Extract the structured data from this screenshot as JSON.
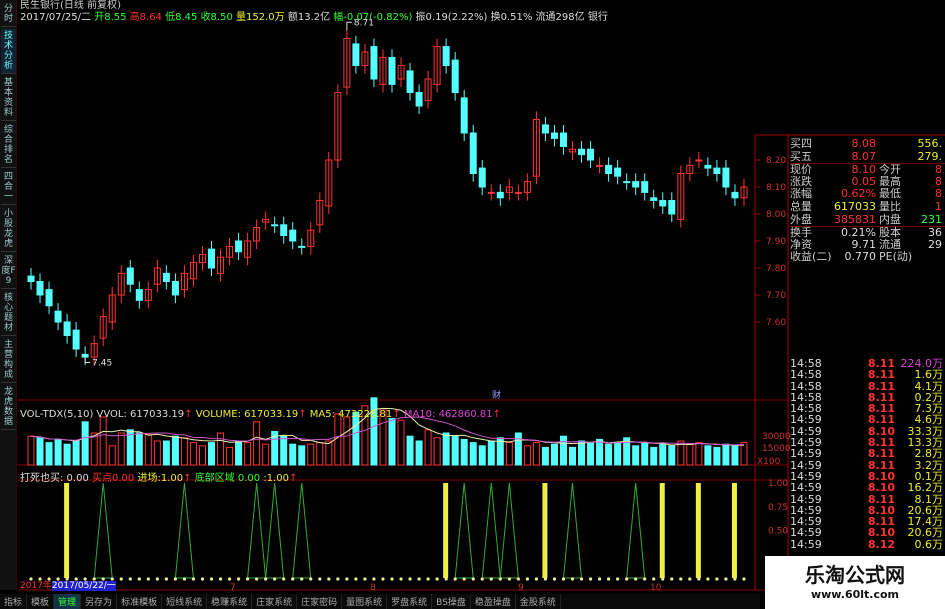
{
  "sidebar": {
    "tabs": [
      "分时",
      "技术分析",
      "基本资料",
      "综合排名",
      "四合一",
      "小股龙虎",
      "深度F9",
      "核心题材",
      "主营构成",
      "龙虎数据"
    ],
    "active": 1
  },
  "header": {
    "title": "民生银行(日线 前复权)",
    "date": "2017/07/25/二",
    "open": "开8.55",
    "high": "高8.64",
    "low": "低8.45",
    "close": "收8.50",
    "volume": "量152.0万",
    "amount": "额13.2亿",
    "change": "幅-0.07(-0.82%)",
    "amplitude": "振0.19(2.22%)",
    "turnover": "换0.51%",
    "float": "流通298亿",
    "industry": "银行"
  },
  "price_chart": {
    "max_label": "8.71",
    "min_label": "7.45",
    "axis": [
      "8.20",
      "8.10",
      "8.00",
      "7.90",
      "7.80",
      "7.70",
      "7.60"
    ],
    "markers": [
      "财"
    ],
    "closes": [
      7.75,
      7.7,
      7.66,
      7.6,
      7.55,
      7.5,
      7.47,
      7.52,
      7.62,
      7.7,
      7.78,
      7.74,
      7.68,
      7.72,
      7.8,
      7.75,
      7.7,
      7.78,
      7.82,
      7.85,
      7.8,
      7.84,
      7.88,
      7.86,
      7.9,
      7.95,
      7.98,
      7.96,
      7.92,
      7.9,
      7.88,
      7.94,
      8.05,
      8.2,
      8.45,
      8.65,
      8.55,
      8.6,
      8.5,
      8.58,
      8.48,
      8.55,
      8.45,
      8.4,
      8.5,
      8.62,
      8.55,
      8.45,
      8.3,
      8.15,
      8.1,
      8.08,
      8.06,
      8.1,
      8.08,
      8.12,
      8.35,
      8.3,
      8.28,
      8.25,
      8.24,
      8.22,
      8.2,
      8.18,
      8.15,
      8.14,
      8.12,
      8.1,
      8.08,
      8.05,
      8.03,
      8.0,
      8.15,
      8.18,
      8.2,
      8.17,
      8.15,
      8.1,
      8.06,
      8.1
    ],
    "up_color": "#ff3333",
    "down_color": "#54ffff"
  },
  "volume_chart": {
    "title": "VOL-TDX(5,10)",
    "vvol": "VVOL: 617033.19",
    "volume": "VOLUME: 617033.19",
    "ma5": "MA5: 473228.81",
    "ma10": "MA10: 462860.81",
    "axis": [
      "30000",
      "15000",
      "X100"
    ],
    "values": [
      18,
      17,
      14,
      16,
      13,
      15,
      27,
      20,
      30,
      12,
      20,
      22,
      20,
      19,
      15,
      15,
      18,
      17,
      14,
      12,
      14,
      20,
      11,
      15,
      14,
      27,
      13,
      21,
      18,
      13,
      12,
      13,
      14,
      15,
      32,
      30,
      33,
      37,
      42,
      35,
      29,
      28,
      18,
      15,
      22,
      17,
      20,
      18,
      16,
      14,
      12,
      15,
      17,
      14,
      20,
      12,
      14,
      11,
      13,
      18,
      11,
      15,
      14,
      16,
      13,
      14,
      17,
      12,
      14,
      11,
      13,
      12,
      15,
      13,
      14,
      12,
      11,
      13,
      12,
      14
    ]
  },
  "indicator": {
    "name": "打死也买",
    "value1": ": 0.00",
    "buy_label": "买点",
    "buy_value": "0.00",
    "entry_label": "进场",
    "entry_value": ":1.00",
    "zone_label": "底部区域",
    "zone_value": "0.00",
    "value5": ":1.00",
    "axis": [
      "1.00",
      "0.75",
      "0.50"
    ],
    "yellow_spikes": [
      4,
      46,
      57,
      70,
      74,
      78
    ],
    "green_spikes": [
      8,
      17,
      25,
      27,
      30,
      48,
      51,
      53,
      60,
      67
    ]
  },
  "dates": {
    "year": "2017年",
    "cursor": "2017/05/22/一",
    "months": [
      "7",
      "8",
      "9",
      "10"
    ]
  },
  "quote": {
    "rows": [
      [
        "买四",
        "8.08",
        "",
        "556."
      ],
      [
        "买五",
        "8.07",
        "",
        "279."
      ],
      [
        "现价",
        "8.10",
        "今开",
        "8"
      ],
      [
        "涨跌",
        "0.05",
        "最高",
        "8"
      ],
      [
        "涨幅",
        "0.62%",
        "最低",
        "8"
      ],
      [
        "总量",
        "617033",
        "量比",
        "1"
      ],
      [
        "外盘",
        "385831",
        "内盘",
        "231"
      ],
      [
        "换手",
        "0.21%",
        "股本",
        "36"
      ],
      [
        "净资",
        "9.71",
        "流通",
        "29"
      ],
      [
        "收益(二)",
        "0.770",
        "PE(动)",
        ""
      ]
    ]
  },
  "ticks": [
    [
      "14:58",
      "8.11",
      "224.0万"
    ],
    [
      "14:58",
      "8.11",
      "1.6万"
    ],
    [
      "14:58",
      "8.11",
      "4.1万"
    ],
    [
      "14:58",
      "8.11",
      "0.2万"
    ],
    [
      "14:58",
      "8.11",
      "7.3万"
    ],
    [
      "14:59",
      "8.11",
      "4.6万"
    ],
    [
      "14:59",
      "8.10",
      "33.3万"
    ],
    [
      "14:59",
      "8.11",
      "13.3万"
    ],
    [
      "14:59",
      "8.11",
      "2.8万"
    ],
    [
      "14:59",
      "8.11",
      "3.2万"
    ],
    [
      "14:59",
      "8.10",
      "0.1万"
    ],
    [
      "14:59",
      "8.10",
      "16.2万"
    ],
    [
      "14:59",
      "8.11",
      "8.1万"
    ],
    [
      "14:59",
      "8.10",
      "20.6万"
    ],
    [
      "14:59",
      "8.11",
      "17.4万"
    ],
    [
      "14:59",
      "8.10",
      "20.6万"
    ],
    [
      "14:59",
      "8.12",
      "0.6万"
    ]
  ],
  "footer": {
    "tabs": [
      "指标",
      "模板",
      "管理",
      "另存为",
      "标准模板",
      "短线系统",
      "稳赚系统",
      "庄家系统",
      "庄家密码",
      "量图系统",
      "罗盘系统",
      "BS操盘",
      "稳盈操盘",
      "金股系统"
    ],
    "active": 2
  },
  "watermark": {
    "name": "乐淘公式网",
    "url": "www.60lt.com"
  }
}
